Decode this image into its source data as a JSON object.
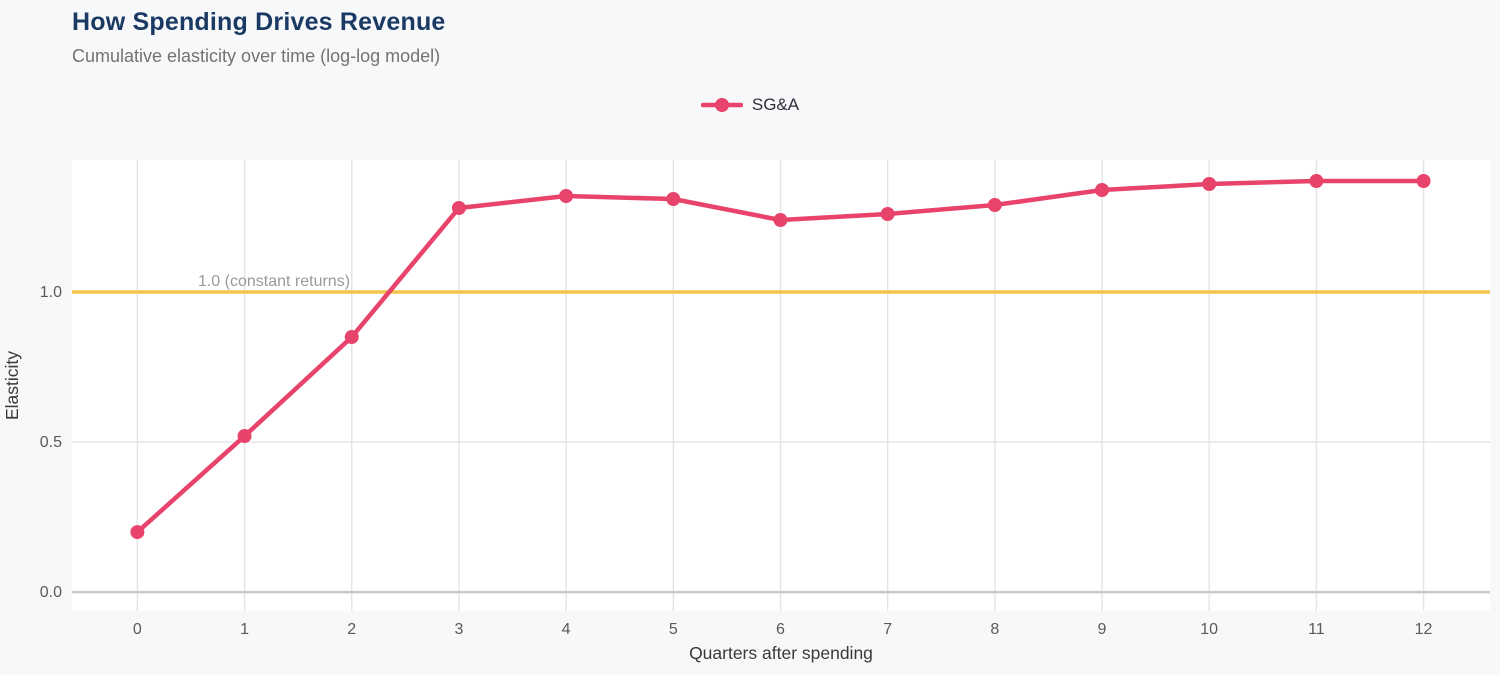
{
  "header": {
    "title": "How Spending Drives Revenue",
    "subtitle": "Cumulative elasticity over time (log-log model)"
  },
  "legend": {
    "items": [
      {
        "label": "SG&A",
        "color": "#e8436a"
      }
    ]
  },
  "chart_data": {
    "type": "line",
    "x": [
      0,
      1,
      2,
      3,
      4,
      5,
      6,
      7,
      8,
      9,
      10,
      11,
      12
    ],
    "series": [
      {
        "name": "SG&A",
        "color": "#e8436a",
        "values": [
          0.2,
          0.52,
          0.85,
          1.28,
          1.32,
          1.31,
          1.24,
          1.26,
          1.29,
          1.34,
          1.36,
          1.37,
          1.37
        ]
      }
    ],
    "title": "How Spending Drives Revenue",
    "subtitle": "Cumulative elasticity over time (log-log model)",
    "xlabel": "Quarters after spending",
    "ylabel": "Elasticity",
    "xtick_labels": [
      "0",
      "1",
      "2",
      "3",
      "4",
      "5",
      "6",
      "7",
      "8",
      "9",
      "10",
      "11",
      "12"
    ],
    "yticks": [
      0.0,
      0.5,
      1.0
    ],
    "ytick_labels": [
      "0.0",
      "0.5",
      "1.0"
    ],
    "xlim": [
      -0.61,
      12.62
    ],
    "ylim": [
      -0.063,
      1.44
    ],
    "grid": true,
    "legend_position": "top-center",
    "reference_line": {
      "y": 1.0,
      "label": "1.0 (constant returns)",
      "color": "#f3c44d"
    }
  },
  "colors": {
    "page_background": "#f7f8fa",
    "plot_background": "#ffffff",
    "gridline": "#e4e4e4",
    "zero_line": "#c8c8c8",
    "tick_label": "#5a5a5a",
    "axis_title": "#3a3a3a",
    "annotation": "#9a9a9a",
    "title": "#1b3a63",
    "subtitle": "#737373"
  }
}
